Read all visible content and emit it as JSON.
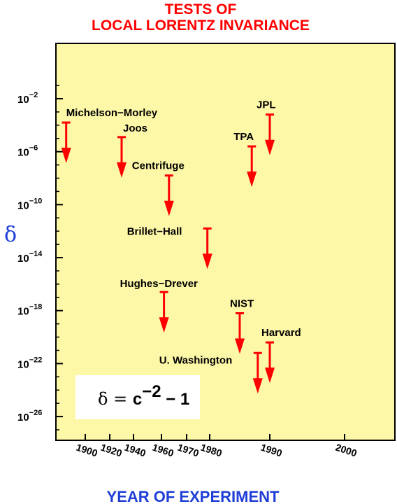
{
  "chart_data": {
    "type": "scatter",
    "title_lines": [
      "TESTS OF",
      "LOCAL LORENTZ INVARIANCE"
    ],
    "xlabel": "YEAR OF EXPERIMENT",
    "ylabel": "δ",
    "y_scale": "log",
    "x_tick_labels": [
      "1900",
      "1920",
      "1940",
      "1960",
      "1970",
      "1980",
      "1990",
      "2000"
    ],
    "y_ticks": [
      {
        "base": "10",
        "exp": "−2",
        "value": 0.01
      },
      {
        "base": "10",
        "exp": "−6",
        "value": 1e-06
      },
      {
        "base": "10",
        "exp": "−10",
        "value": 1e-10
      },
      {
        "base": "10",
        "exp": "−14",
        "value": 1e-14
      },
      {
        "base": "10",
        "exp": "−18",
        "value": 1e-18
      },
      {
        "base": "10",
        "exp": "−22",
        "value": 1e-22
      },
      {
        "base": "10",
        "exp": "−26",
        "value": 1e-26
      }
    ],
    "formula": {
      "lhs": "δ = ",
      "body": "c",
      "exp": "−2",
      "tail": " − 1"
    },
    "grid": false,
    "arrow_color": "#ff0000",
    "background_color": "#fdf7a8",
    "points": [
      {
        "label": "Michelson−Morley",
        "x": 1887,
        "y_exp": -3.8
      },
      {
        "label": "Joos",
        "x": 1930,
        "y_exp": -4.9
      },
      {
        "label": "Centrifuge",
        "x": 1963,
        "y_exp": -7.8
      },
      {
        "label": "Brillet−Hall",
        "x": 1979,
        "y_exp": -11.8
      },
      {
        "label": "Hughes−Drever",
        "x": 1961,
        "y_exp": -16.6
      },
      {
        "label": "TPA",
        "x": 1987,
        "y_exp": -5.6
      },
      {
        "label": "JPL",
        "x": 1990,
        "y_exp": -3.2
      },
      {
        "label": "NIST",
        "x": 1985,
        "y_exp": -18.2
      },
      {
        "label": "U. Washington",
        "x": 1988,
        "y_exp": -21.2
      },
      {
        "label": "Harvard",
        "x": 1990,
        "y_exp": -20.4
      }
    ]
  }
}
